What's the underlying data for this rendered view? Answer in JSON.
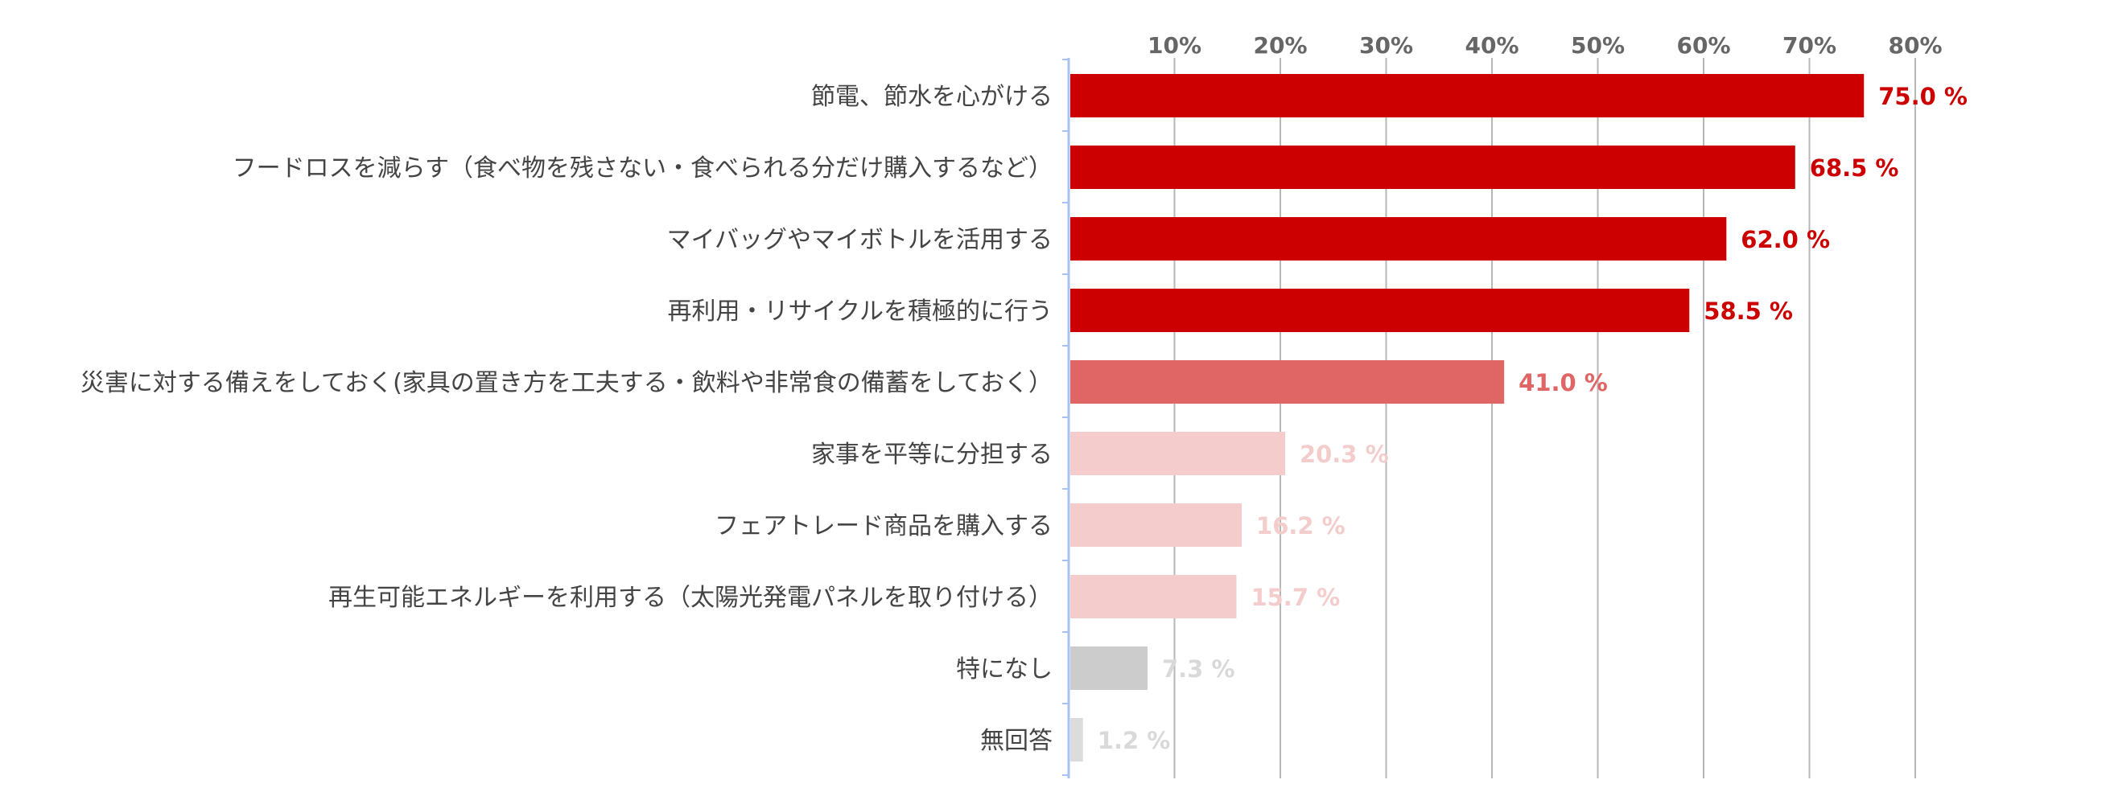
{
  "chart_data": {
    "type": "bar",
    "orientation": "horizontal",
    "title": "",
    "xlabel": "",
    "ylabel": "",
    "xlim": [
      0,
      80
    ],
    "x_ticks": [
      10,
      20,
      30,
      40,
      50,
      60,
      70,
      80
    ],
    "x_tick_labels": [
      "10%",
      "20%",
      "30%",
      "40%",
      "50%",
      "60%",
      "70%",
      "80%"
    ],
    "tick_position": "top",
    "grid": true,
    "legend": "none",
    "categories": [
      "節電、節水を心がける",
      "フードロスを減らす（食べ物を残さない・食べられる分だけ購入するなど）",
      "マイバッグやマイボトルを活用する",
      "再利用・リサイクルを積極的に行う",
      "災害に対する備えをしておく(家具の置き方を工夫する・飲料や非常食の備蓄をしておく）",
      "家事を平等に分担する",
      "フェアトレード商品を購入する",
      "再生可能エネルギーを利用する（太陽光発電パネルを取り付ける）",
      "特になし",
      "無回答"
    ],
    "values": [
      75.0,
      68.5,
      62.0,
      58.5,
      41.0,
      20.3,
      16.2,
      15.7,
      7.3,
      1.2
    ],
    "value_labels": [
      "75.0 %",
      "68.5 %",
      "62.0 %",
      "58.5 %",
      "41.0 %",
      "20.3 %",
      "16.2 %",
      "15.7 %",
      "7.3 %",
      "1.2 %"
    ],
    "bar_colors": [
      "#cc0000",
      "#cc0000",
      "#cc0000",
      "#cc0000",
      "#e06666",
      "#f4cccc",
      "#f4cccc",
      "#f4cccc",
      "#cccccc",
      "#dcdcdc"
    ],
    "label_colors": [
      "#cc0000",
      "#cc0000",
      "#cc0000",
      "#cc0000",
      "#e06666",
      "#f4cccc",
      "#f4cccc",
      "#f4cccc",
      "#d9d9d9",
      "#d9d9d9"
    ],
    "gridline_color": "#b7b7b7",
    "axis_color": "#a4c2f4"
  }
}
